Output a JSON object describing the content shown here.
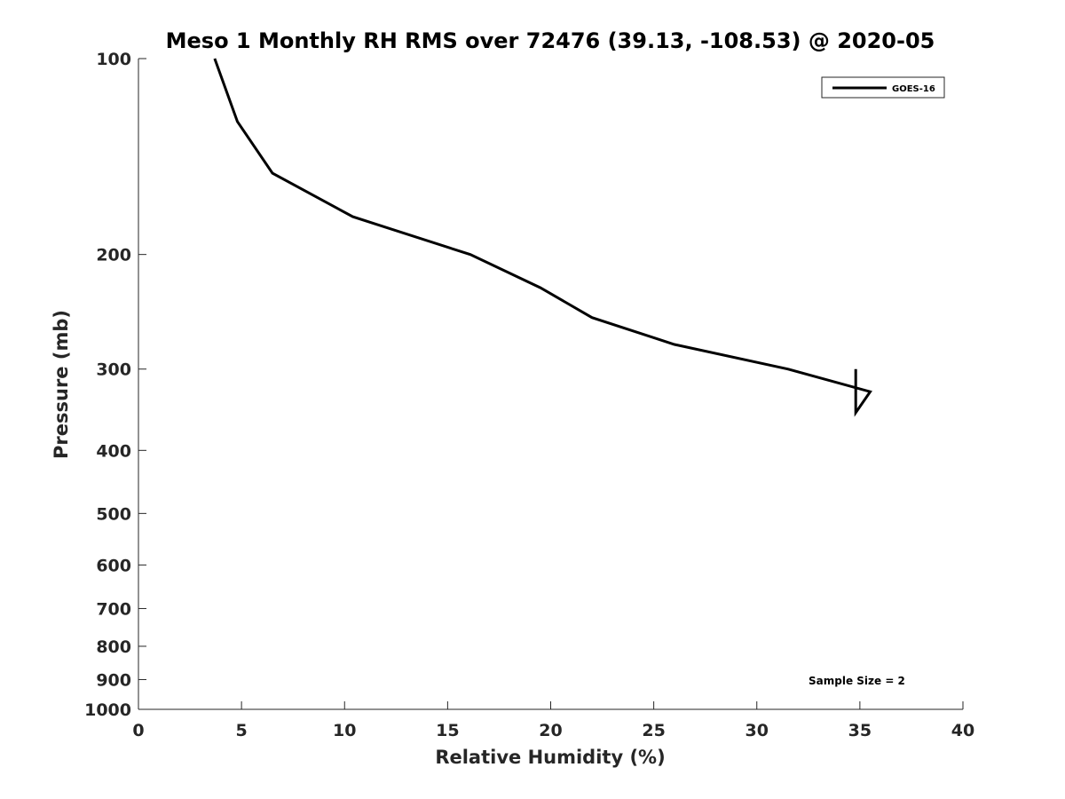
{
  "chart_data": {
    "type": "line",
    "title": "Meso 1 Monthly RH RMS over 72476 (39.13, -108.53) @ 2020-05",
    "xlabel": "Relative Humidity (%)",
    "ylabel": "Pressure (mb)",
    "xlim": [
      0,
      40
    ],
    "ylim": [
      100,
      1000
    ],
    "y_scale": "log",
    "y_direction": "reversed",
    "x_ticks": [
      "0",
      "5",
      "10",
      "15",
      "20",
      "25",
      "30",
      "35",
      "40"
    ],
    "y_ticks": [
      "100",
      "200",
      "300",
      "400",
      "500",
      "600",
      "700",
      "800",
      "900",
      "1000"
    ],
    "grid": false,
    "legend_position": "top-right",
    "annotation": "Sample Size = 2",
    "series": [
      {
        "name": "GOES-16",
        "color": "#000000",
        "points": [
          {
            "rh": 3.7,
            "p": 100
          },
          {
            "rh": 4.8,
            "p": 125
          },
          {
            "rh": 6.5,
            "p": 150
          },
          {
            "rh": 10.4,
            "p": 175
          },
          {
            "rh": 16.1,
            "p": 200
          },
          {
            "rh": 19.5,
            "p": 225
          },
          {
            "rh": 22.0,
            "p": 250
          },
          {
            "rh": 26.0,
            "p": 275
          },
          {
            "rh": 31.5,
            "p": 300
          },
          {
            "rh": 35.5,
            "p": 325
          },
          {
            "rh": 34.8,
            "p": 350
          },
          {
            "rh": 34.8,
            "p": 300
          }
        ]
      }
    ]
  }
}
